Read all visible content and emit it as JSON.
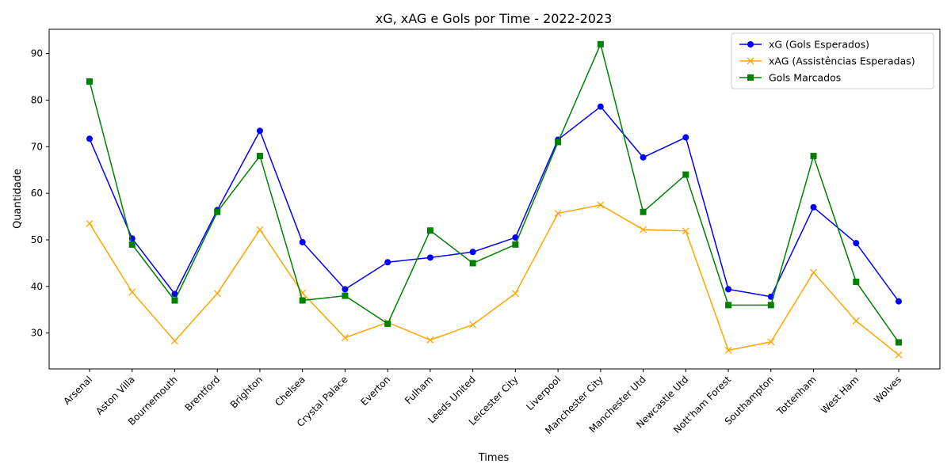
{
  "chart_data": {
    "type": "line",
    "title": "xG, xAG e Gols por Time - 2022-2023",
    "xlabel": "Times",
    "ylabel": "Quantidade",
    "ylim": [
      22.3,
      95.2
    ],
    "yticks": [
      30,
      40,
      50,
      60,
      70,
      80,
      90
    ],
    "grid": false,
    "legend_position": "top-right",
    "categories": [
      "Arsenal",
      "Aston Villa",
      "Bournemouth",
      "Brentford",
      "Brighton",
      "Chelsea",
      "Crystal Palace",
      "Everton",
      "Fulham",
      "Leeds United",
      "Leicester City",
      "Liverpool",
      "Manchester City",
      "Manchester Utd",
      "Newcastle Utd",
      "Nott'ham Forest",
      "Southampton",
      "Tottenham",
      "West Ham",
      "Wolves"
    ],
    "series": [
      {
        "name": "xG (Gols Esperados)",
        "color": "#0000ff",
        "marker": "circle",
        "values": [
          71.7,
          50.3,
          38.4,
          56.4,
          73.4,
          49.5,
          39.4,
          45.2,
          46.2,
          47.4,
          50.5,
          71.5,
          78.6,
          67.7,
          72.0,
          39.4,
          37.8,
          57.0,
          49.3,
          36.8
        ]
      },
      {
        "name": "xAG (Assistências Esperadas)",
        "color": "#ffa500",
        "marker": "x",
        "values": [
          53.5,
          38.8,
          28.3,
          38.5,
          52.2,
          38.6,
          29.0,
          32.3,
          28.5,
          31.8,
          38.5,
          55.7,
          57.5,
          52.2,
          51.9,
          26.3,
          28.1,
          43.0,
          32.6,
          25.3
        ]
      },
      {
        "name": "Gols Marcados",
        "color": "#008000",
        "marker": "square",
        "values": [
          84,
          49,
          37,
          56,
          68,
          37,
          38,
          32,
          52,
          45,
          49,
          71,
          92,
          56,
          64,
          36,
          36,
          68,
          41,
          28
        ]
      }
    ]
  }
}
